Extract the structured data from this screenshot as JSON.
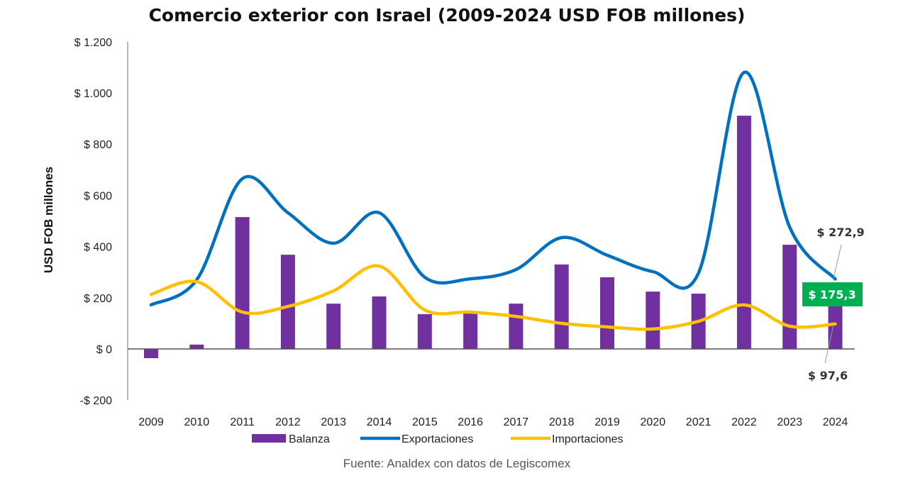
{
  "chart_data": {
    "type": "bar+line",
    "title": "Comercio exterior con Israel (2009-2024 USD FOB millones)",
    "ylabel": "USD FOB millones",
    "xlabel": "",
    "ylim": [
      -200,
      1200
    ],
    "yticks": [
      -200,
      0,
      200,
      400,
      600,
      800,
      1000,
      1200
    ],
    "ytick_labels": [
      "-$ 200",
      "$ 0",
      "$ 200",
      "$ 400",
      "$ 600",
      "$ 800",
      "$ 1.000",
      "$ 1.200"
    ],
    "categories": [
      "2009",
      "2010",
      "2011",
      "2012",
      "2013",
      "2014",
      "2015",
      "2016",
      "2017",
      "2018",
      "2019",
      "2020",
      "2021",
      "2022",
      "2023",
      "2024"
    ],
    "series": [
      {
        "name": "Balanza",
        "type": "bar",
        "color": "#7030A0",
        "values": [
          -36,
          17,
          515,
          368,
          177,
          205,
          136,
          144,
          177,
          330,
          280,
          224,
          216,
          911,
          407,
          175.3
        ]
      },
      {
        "name": "Exportaciones",
        "type": "line",
        "color": "#0070C0",
        "values": [
          172,
          270,
          665,
          532,
          413,
          532,
          280,
          274,
          310,
          435,
          366,
          302,
          296,
          1080,
          476,
          272.9
        ]
      },
      {
        "name": "Importaciones",
        "type": "line",
        "color": "#FFC000",
        "values": [
          213,
          263,
          144,
          166,
          227,
          324,
          152,
          144,
          127,
          100,
          86,
          78,
          108,
          172,
          89,
          97.6
        ]
      }
    ],
    "data_labels": {
      "exportaciones_2024": "$ 272,9",
      "balanza_2024": "$ 175,3",
      "importaciones_2024": "$ 97,6"
    },
    "highlight_color": "#00B050",
    "legend_position": "bottom",
    "grid": false
  },
  "source": "Fuente: Analdex con datos de Legiscomex"
}
